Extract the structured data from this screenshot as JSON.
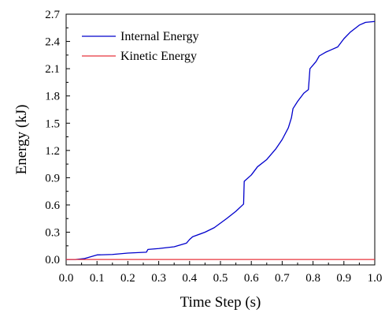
{
  "chart_data": {
    "type": "line",
    "xlabel": "Time Step (s)",
    "ylabel": "Energy (kJ)",
    "xlim": [
      0.0,
      1.0
    ],
    "ylim": [
      -0.06,
      2.7
    ],
    "xticks": [
      0.0,
      0.1,
      0.2,
      0.3,
      0.4,
      0.5,
      0.6,
      0.7,
      0.8,
      0.9,
      1.0
    ],
    "xtick_labels": [
      "0.0",
      "0.1",
      "0.2",
      "0.3",
      "0.4",
      "0.5",
      "0.6",
      "0.7",
      "0.8",
      "0.9",
      "1.0"
    ],
    "yticks": [
      0.0,
      0.3,
      0.6,
      0.9,
      1.2,
      1.5,
      1.8,
      2.1,
      2.4,
      2.7
    ],
    "ytick_labels": [
      "0.0",
      "0.3",
      "0.6",
      "0.9",
      "1.2",
      "1.5",
      "1.8",
      "2.1",
      "2.4",
      "2.7"
    ],
    "grid": false,
    "legend_position": "top-left",
    "series": [
      {
        "name": "Internal Energy",
        "color": "#0000cc",
        "points": [
          [
            0.0,
            0.0
          ],
          [
            0.03,
            0.0
          ],
          [
            0.06,
            0.01
          ],
          [
            0.08,
            0.03
          ],
          [
            0.1,
            0.05
          ],
          [
            0.15,
            0.055
          ],
          [
            0.2,
            0.07
          ],
          [
            0.26,
            0.08
          ],
          [
            0.265,
            0.11
          ],
          [
            0.3,
            0.12
          ],
          [
            0.35,
            0.14
          ],
          [
            0.39,
            0.18
          ],
          [
            0.4,
            0.22
          ],
          [
            0.41,
            0.25
          ],
          [
            0.45,
            0.3
          ],
          [
            0.48,
            0.35
          ],
          [
            0.52,
            0.45
          ],
          [
            0.55,
            0.53
          ],
          [
            0.575,
            0.61
          ],
          [
            0.577,
            0.86
          ],
          [
            0.6,
            0.93
          ],
          [
            0.62,
            1.02
          ],
          [
            0.65,
            1.1
          ],
          [
            0.68,
            1.22
          ],
          [
            0.7,
            1.32
          ],
          [
            0.72,
            1.45
          ],
          [
            0.73,
            1.56
          ],
          [
            0.735,
            1.66
          ],
          [
            0.75,
            1.74
          ],
          [
            0.77,
            1.83
          ],
          [
            0.785,
            1.87
          ],
          [
            0.79,
            2.1
          ],
          [
            0.8,
            2.14
          ],
          [
            0.81,
            2.18
          ],
          [
            0.82,
            2.24
          ],
          [
            0.84,
            2.28
          ],
          [
            0.86,
            2.31
          ],
          [
            0.88,
            2.34
          ],
          [
            0.9,
            2.43
          ],
          [
            0.92,
            2.5
          ],
          [
            0.95,
            2.58
          ],
          [
            0.97,
            2.61
          ],
          [
            1.0,
            2.62
          ]
        ]
      },
      {
        "name": "Kinetic Energy",
        "color": "#e8343c",
        "points": [
          [
            0.0,
            0.0
          ],
          [
            1.0,
            0.0
          ]
        ]
      }
    ]
  }
}
